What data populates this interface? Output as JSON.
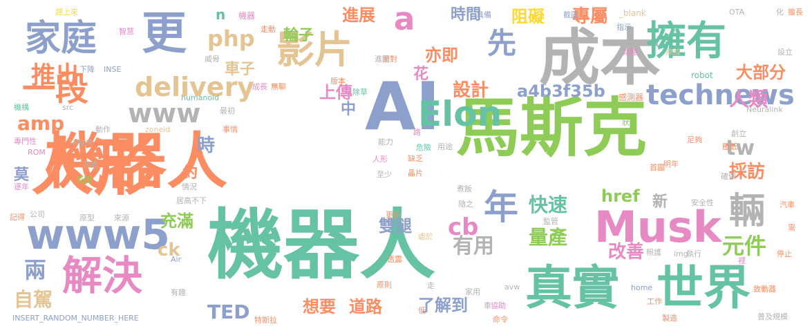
{
  "palette": {
    "green": "#8fcc57",
    "teal": "#66c2a5",
    "orange": "#fc8d62",
    "blue": "#8da0cb",
    "pink": "#e78ac3",
    "gray": "#b3b3b3",
    "tan": "#e5c494",
    "yellow": "#ffd92f"
  },
  "words": [
    {
      "text": "機器人",
      "color": "teal"
    },
    {
      "text": "機器人",
      "color": "orange"
    },
    {
      "text": "馬斯克",
      "color": "green"
    },
    {
      "text": "人形",
      "color": "orange"
    },
    {
      "text": "AI",
      "color": "blue"
    },
    {
      "text": "成本",
      "color": "gray"
    },
    {
      "text": "真實",
      "color": "teal"
    },
    {
      "text": "世界",
      "color": "teal"
    },
    {
      "text": "Musk",
      "color": "pink"
    },
    {
      "text": "擁有",
      "color": "teal"
    },
    {
      "text": "www5",
      "color": "blue"
    },
    {
      "text": "解決",
      "color": "pink"
    },
    {
      "text": "家庭",
      "color": "blue"
    },
    {
      "text": "更",
      "color": "blue"
    },
    {
      "text": "影片",
      "color": "tan"
    },
    {
      "text": "Elon",
      "color": "teal"
    },
    {
      "text": "一段",
      "color": "orange"
    },
    {
      "text": "年",
      "color": "blue"
    },
    {
      "text": "輛",
      "color": "gray"
    },
    {
      "text": "a",
      "color": "pink"
    },
    {
      "text": "先",
      "color": "blue"
    },
    {
      "text": "technews",
      "color": "blue"
    },
    {
      "text": "delivery",
      "color": "tan"
    },
    {
      "text": "推出",
      "color": "orange"
    },
    {
      "text": "www",
      "color": "gray"
    },
    {
      "text": "php",
      "color": "tan"
    },
    {
      "text": "cb",
      "color": "pink"
    },
    {
      "text": "元件",
      "color": "green"
    },
    {
      "text": "量產",
      "color": "green"
    },
    {
      "text": "快速",
      "color": "teal"
    },
    {
      "text": "兩",
      "color": "blue"
    },
    {
      "text": "amp",
      "color": "orange"
    },
    {
      "text": "輪子",
      "color": "green"
    },
    {
      "text": "進展",
      "color": "orange"
    },
    {
      "text": "時間",
      "color": "blue"
    },
    {
      "text": "亦即",
      "color": "orange"
    },
    {
      "text": "車子",
      "color": "tan"
    },
    {
      "text": "阻礙",
      "color": "yellow"
    },
    {
      "text": "專屬",
      "color": "orange"
    },
    {
      "text": "大部分",
      "color": "orange"
    },
    {
      "text": "人類",
      "color": "pink"
    },
    {
      "text": "tw",
      "color": "gray"
    },
    {
      "text": "採訪",
      "color": "orange"
    },
    {
      "text": "設計",
      "color": "orange"
    },
    {
      "text": "a4b3f35b",
      "color": "blue"
    },
    {
      "text": "上傳",
      "color": "pink"
    },
    {
      "text": "中",
      "color": "blue"
    },
    {
      "text": "有用",
      "color": "gray"
    },
    {
      "text": "改善",
      "color": "pink"
    },
    {
      "text": "TED",
      "color": "blue"
    },
    {
      "text": "想要",
      "color": "orange"
    },
    {
      "text": "道路",
      "color": "orange"
    },
    {
      "text": "了解到",
      "color": "blue"
    },
    {
      "text": "雙腿",
      "color": "blue"
    },
    {
      "text": "充滿",
      "color": "green"
    },
    {
      "text": "href",
      "color": "green"
    },
    {
      "text": "新",
      "color": "gray"
    },
    {
      "text": "自駕",
      "color": "tan"
    },
    {
      "text": "莫",
      "color": "blue"
    },
    {
      "text": "時",
      "color": "blue"
    },
    {
      "text": "約",
      "color": "orange"
    },
    {
      "text": "ck",
      "color": "tan"
    },
    {
      "text": "花",
      "color": "pink"
    },
    {
      "text": "n",
      "color": "teal"
    },
    {
      "text": "趕上來",
      "color": "yellow"
    },
    {
      "text": "智慧",
      "color": "pink"
    },
    {
      "text": "機器",
      "color": "pink"
    },
    {
      "text": "走動",
      "color": "orange"
    },
    {
      "text": "具備",
      "color": "blue"
    },
    {
      "text": "截圖",
      "color": "blue"
    },
    {
      "text": "_blank",
      "color": "tan"
    },
    {
      "text": "指示",
      "color": "blue"
    },
    {
      "text": "OTA",
      "color": "gray"
    },
    {
      "text": "化",
      "color": "gray"
    },
    {
      "text": "擅長",
      "color": "orange"
    },
    {
      "text": "威脅",
      "color": "gray"
    },
    {
      "text": "面對",
      "color": "orange"
    },
    {
      "text": "減輕",
      "color": "pink"
    },
    {
      "text": "無線",
      "color": "tan"
    },
    {
      "text": "設立",
      "color": "gray"
    },
    {
      "text": "下降",
      "color": "blue"
    },
    {
      "text": "INSE",
      "color": "blue"
    },
    {
      "text": "進階",
      "color": "gray"
    },
    {
      "text": "robot",
      "color": "teal"
    },
    {
      "text": "機構",
      "color": "teal"
    },
    {
      "text": "成長",
      "color": "pink"
    },
    {
      "text": "無聊",
      "color": "orange"
    },
    {
      "text": "版本",
      "color": "orange"
    },
    {
      "text": "除草",
      "color": "teal"
    },
    {
      "text": "感測器",
      "color": "orange"
    },
    {
      "text": "src",
      "color": "gray"
    },
    {
      "text": "humanoid",
      "color": "teal"
    },
    {
      "text": "最初",
      "color": "gray"
    },
    {
      "text": "Neuralink",
      "color": "gray"
    },
    {
      "text": "動作",
      "color": "gray"
    },
    {
      "text": "zoneid",
      "color": "tan"
    },
    {
      "text": "事情",
      "color": "orange"
    },
    {
      "text": "狀態",
      "color": "green"
    },
    {
      "text": "專門性",
      "color": "pink"
    },
    {
      "text": "target",
      "color": "gray"
    },
    {
      "text": "路",
      "color": "pink"
    },
    {
      "text": "用途",
      "color": "gray"
    },
    {
      "text": "危險",
      "color": "teal"
    },
    {
      "text": "能力",
      "color": "gray"
    },
    {
      "text": "缺乏",
      "color": "orange"
    },
    {
      "text": "創立",
      "color": "gray"
    },
    {
      "text": "壓低",
      "color": "orange"
    },
    {
      "text": "足夠",
      "color": "orange"
    },
    {
      "text": "明年",
      "color": "orange"
    },
    {
      "text": "ROM",
      "color": "pink"
    },
    {
      "text": "四處",
      "color": "gray"
    },
    {
      "text": "人形",
      "color": "pink"
    },
    {
      "text": "晶片",
      "color": "orange"
    },
    {
      "text": "首圖",
      "color": "orange"
    },
    {
      "text": "確保",
      "color": "gray"
    },
    {
      "text": "逐年",
      "color": "pink"
    },
    {
      "text": "原因",
      "color": "green"
    },
    {
      "text": "至少",
      "color": "gray"
    },
    {
      "text": "情況",
      "color": "gray"
    },
    {
      "text": "煮飯",
      "color": "gray"
    },
    {
      "text": "居高不下",
      "color": "gray"
    },
    {
      "text": "隨之",
      "color": "gray"
    },
    {
      "text": "公司",
      "color": "gray"
    },
    {
      "text": "安全性",
      "color": "gray"
    },
    {
      "text": "汽車",
      "color": "orange"
    },
    {
      "text": "記得",
      "color": "orange"
    },
    {
      "text": "原型",
      "color": "gray"
    },
    {
      "text": "來源",
      "color": "gray"
    },
    {
      "text": "更新",
      "color": "orange"
    },
    {
      "text": "監管",
      "color": "gray"
    },
    {
      "text": "處於",
      "color": "tan"
    },
    {
      "text": "Air",
      "color": "blue"
    },
    {
      "text": "透露",
      "color": "orange"
    },
    {
      "text": "照護",
      "color": "gray"
    },
    {
      "text": "img",
      "color": "gray"
    },
    {
      "text": "執行",
      "color": "gray"
    },
    {
      "text": "裡",
      "color": "pink"
    },
    {
      "text": "停止",
      "color": "orange"
    },
    {
      "text": "需",
      "color": "orange"
    },
    {
      "text": "有趣",
      "color": "gray"
    },
    {
      "text": "原則",
      "color": "orange"
    },
    {
      "text": "走",
      "color": "gray"
    },
    {
      "text": "家用",
      "color": "gray"
    },
    {
      "text": "home",
      "color": "blue"
    },
    {
      "text": "avw",
      "color": "gray"
    },
    {
      "text": "致動器",
      "color": "orange"
    },
    {
      "text": "協助",
      "color": "pink"
    },
    {
      "text": "工作",
      "color": "orange"
    },
    {
      "text": "車",
      "color": "gray"
    },
    {
      "text": "INSERT_RANDOM_NUMBER_HERE",
      "color": "blue"
    },
    {
      "text": "特斯拉",
      "color": "orange"
    },
    {
      "text": "低",
      "color": "orange"
    },
    {
      "text": "命令",
      "color": "orange"
    },
    {
      "text": "製造",
      "color": "orange"
    },
    {
      "text": "普及規模",
      "color": "gray"
    }
  ]
}
